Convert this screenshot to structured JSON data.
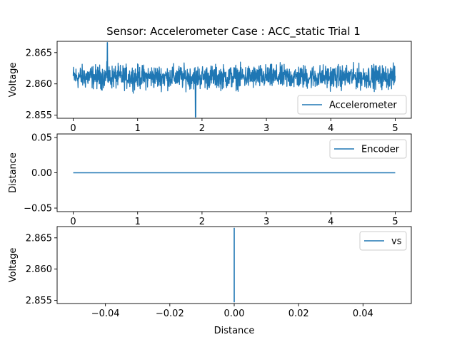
{
  "title": "Sensor: Accelerometer Case : ACC_static Trial 1",
  "colors": {
    "series": "#1f77b4",
    "axes": "#000000",
    "legend_border": "#cccccc"
  },
  "chart_data": [
    {
      "type": "line",
      "ylabel": "Voltage",
      "xlabel": "",
      "xlim": [
        -0.25,
        5.25
      ],
      "ylim": [
        2.8545,
        2.8668
      ],
      "xticks": [
        0,
        1,
        2,
        3,
        4,
        5
      ],
      "xtick_labels": [
        "0",
        "1",
        "2",
        "3",
        "4",
        "5"
      ],
      "yticks": [
        2.855,
        2.86,
        2.865
      ],
      "ytick_labels": [
        "2.855",
        "2.860",
        "2.865"
      ],
      "legend": "lower-right",
      "series": [
        {
          "name": "Accelerometer",
          "kind": "noise-band",
          "x_range": [
            0,
            5
          ],
          "center": 2.8611,
          "typical_min": 2.8587,
          "typical_max": 2.8637,
          "peak_max": {
            "x": 0.53,
            "y": 2.8666
          },
          "peak_min": {
            "x": 1.9,
            "y": 2.8547
          }
        }
      ]
    },
    {
      "type": "line",
      "ylabel": "Distance",
      "xlabel": "",
      "xlim": [
        -0.25,
        5.25
      ],
      "ylim": [
        -0.055,
        0.055
      ],
      "xticks": [
        0,
        1,
        2,
        3,
        4,
        5
      ],
      "xtick_labels": [
        "0",
        "1",
        "2",
        "3",
        "4",
        "5"
      ],
      "yticks": [
        -0.05,
        0.0,
        0.05
      ],
      "ytick_labels": [
        "−0.05",
        "0.00",
        "0.05"
      ],
      "legend": "top-right",
      "series": [
        {
          "name": "Encoder",
          "x": [
            0,
            5
          ],
          "y": [
            0,
            0
          ]
        }
      ]
    },
    {
      "type": "line",
      "ylabel": "Voltage",
      "xlabel": "Distance",
      "xlim": [
        -0.055,
        0.055
      ],
      "ylim": [
        2.8545,
        2.8668
      ],
      "xticks": [
        -0.04,
        -0.02,
        0.0,
        0.02,
        0.04
      ],
      "xtick_labels": [
        "−0.04",
        "−0.02",
        "0.00",
        "0.02",
        "0.04"
      ],
      "yticks": [
        2.855,
        2.86,
        2.865
      ],
      "ytick_labels": [
        "2.855",
        "2.860",
        "2.865"
      ],
      "legend": "top-right",
      "series": [
        {
          "name": "vs",
          "x": [
            0,
            0
          ],
          "y": [
            2.8547,
            2.8666
          ]
        }
      ]
    }
  ]
}
